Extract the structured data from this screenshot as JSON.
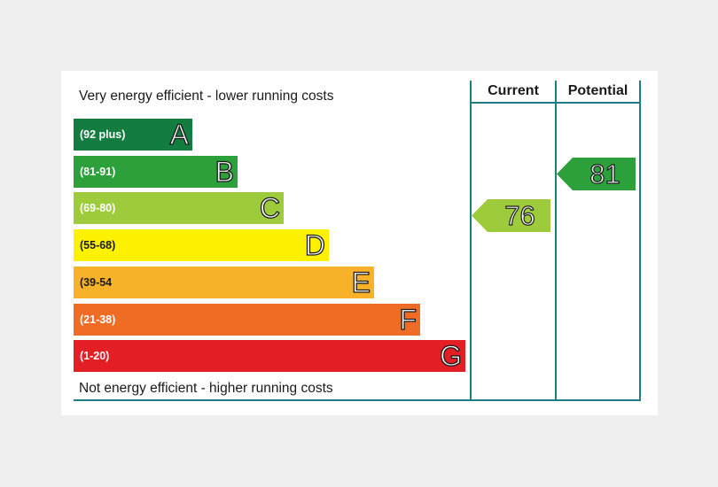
{
  "chart_data": {
    "type": "bar",
    "title": "",
    "top_caption": "Very energy efficient - lower running costs",
    "bottom_caption": "Not energy efficient - higher running costs",
    "bands": [
      {
        "letter": "A",
        "range": "(92 plus)",
        "color": "#137d3f"
      },
      {
        "letter": "B",
        "range": "(81-91)",
        "color": "#2ca03a"
      },
      {
        "letter": "C",
        "range": "(69-80)",
        "color": "#9dcb3b"
      },
      {
        "letter": "D",
        "range": "(55-68)",
        "color": "#fef200"
      },
      {
        "letter": "E",
        "range": "(39-54",
        "color": "#f7b229"
      },
      {
        "letter": "F",
        "range": "(21-38)",
        "color": "#ee6c24"
      },
      {
        "letter": "G",
        "range": "(1-20)",
        "color": "#e31e25"
      }
    ],
    "columns": [
      {
        "header": "Current",
        "value": 76,
        "band": "C",
        "color": "#9dcb3b"
      },
      {
        "header": "Potential",
        "value": 81,
        "band": "B",
        "color": "#2ca03a"
      }
    ]
  }
}
